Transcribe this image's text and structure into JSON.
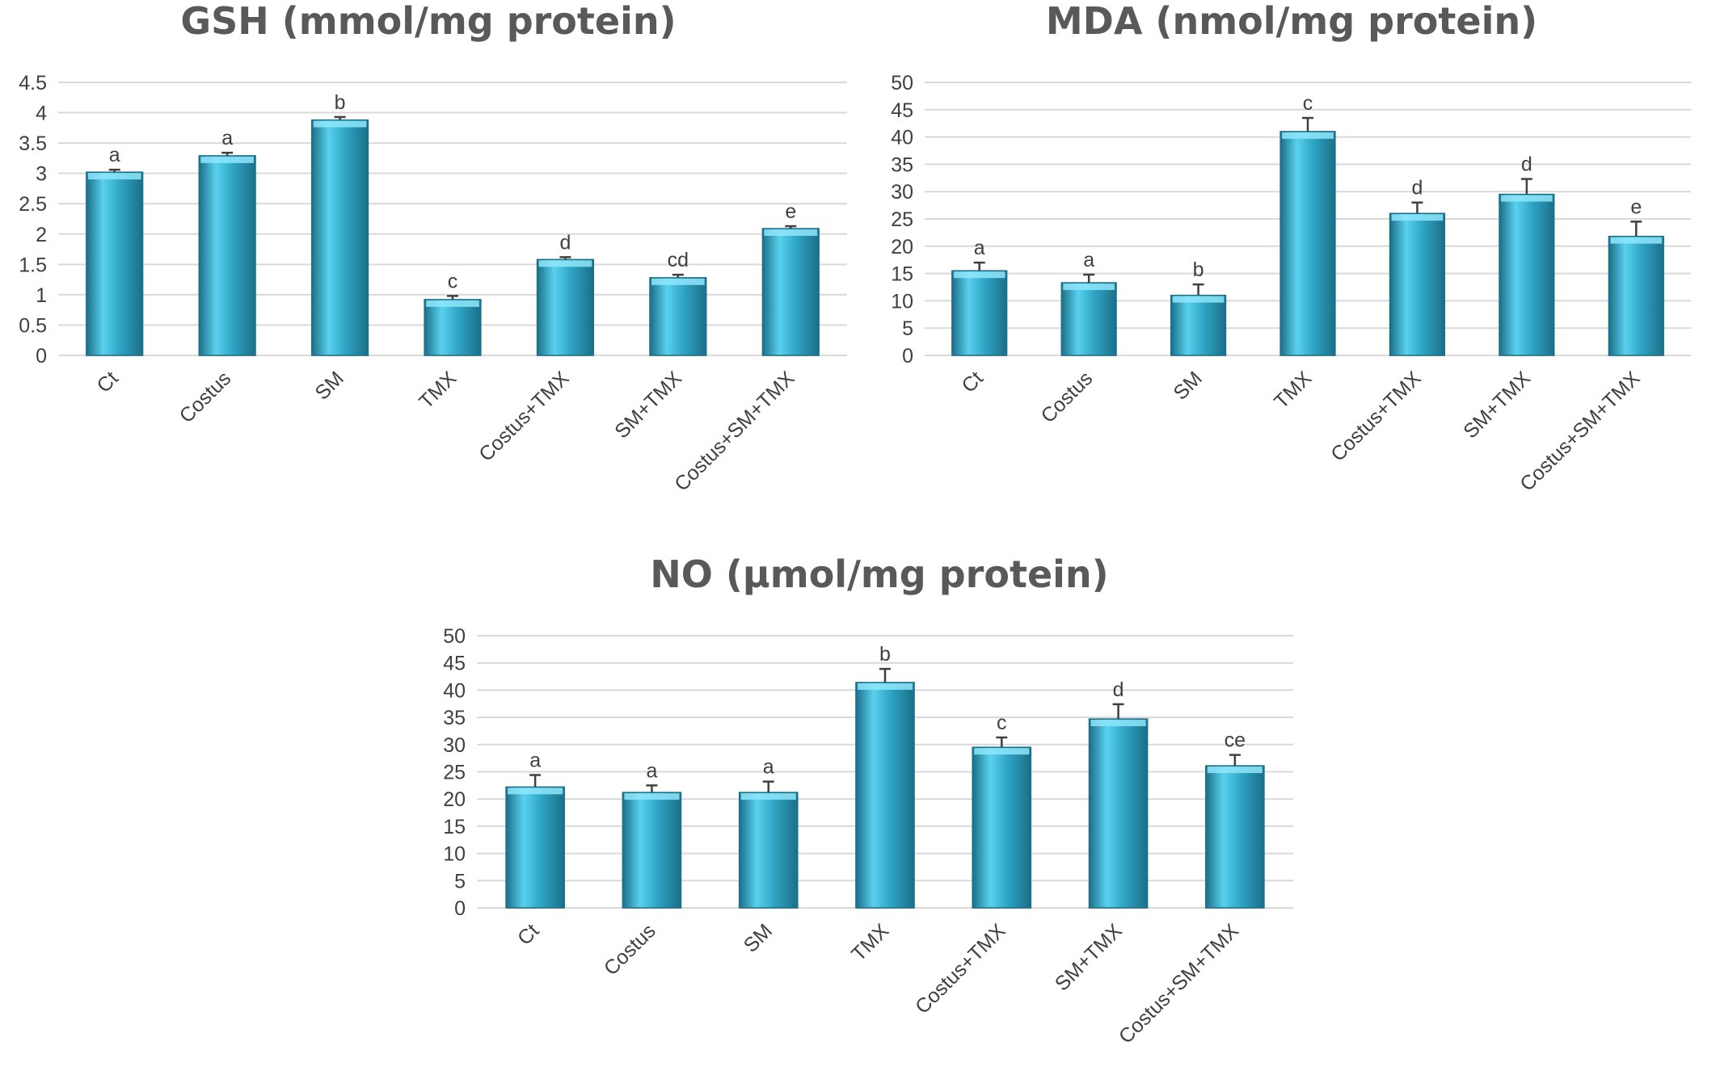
{
  "colors": {
    "bar_dark": "#1b6f88",
    "bar_mid": "#2fa4c4",
    "bar_light": "#58d1ee",
    "bar_top": "#8fe6fa",
    "text": "#404040",
    "title": "#595959",
    "grid": "#d9d9d9"
  },
  "chart_data": [
    {
      "id": "gsh",
      "type": "bar",
      "title": "GSH (mmol/mg protein)",
      "xlabel": "",
      "ylabel": "",
      "ylim": [
        0,
        4.5
      ],
      "yticks": [
        0,
        0.5,
        1,
        1.5,
        2,
        2.5,
        3,
        3.5,
        4,
        4.5
      ],
      "ytick_labels": [
        "0",
        "0.5",
        "1",
        "1.5",
        "2",
        "2.5",
        "3",
        "3.5",
        "4",
        "4.5"
      ],
      "grid": true,
      "legend": "none",
      "categories": [
        "Ct",
        "Costus",
        "SM",
        "TMX",
        "Costus+TMX",
        "SM+TMX",
        "Costus+SM+TMX"
      ],
      "values": [
        3.02,
        3.29,
        3.88,
        0.92,
        1.58,
        1.28,
        2.09
      ],
      "errors": [
        0.04,
        0.05,
        0.05,
        0.06,
        0.04,
        0.05,
        0.04
      ],
      "significance": [
        "a",
        "a",
        "b",
        "c",
        "d",
        "cd",
        "e"
      ]
    },
    {
      "id": "mda",
      "type": "bar",
      "title": "MDA (nmol/mg protein)",
      "xlabel": "",
      "ylabel": "",
      "ylim": [
        0,
        50
      ],
      "yticks": [
        0,
        5,
        10,
        15,
        20,
        25,
        30,
        35,
        40,
        45,
        50
      ],
      "ytick_labels": [
        "0",
        "5",
        "10",
        "15",
        "20",
        "25",
        "30",
        "35",
        "40",
        "45",
        "50"
      ],
      "grid": true,
      "legend": "none",
      "categories": [
        "Ct",
        "Costus",
        "SM",
        "TMX",
        "Costus+TMX",
        "SM+TMX",
        "Costus+SM+TMX"
      ],
      "values": [
        15.5,
        13.3,
        11.0,
        41.0,
        26.0,
        29.5,
        21.8
      ],
      "errors": [
        1.5,
        1.5,
        2.0,
        2.5,
        2.0,
        2.8,
        2.7
      ],
      "significance": [
        "a",
        "a",
        "b",
        "c",
        "d",
        "d",
        "e"
      ]
    },
    {
      "id": "no",
      "type": "bar",
      "title": "NO (µmol/mg protein)",
      "xlabel": "",
      "ylabel": "",
      "ylim": [
        0,
        50
      ],
      "yticks": [
        0,
        5,
        10,
        15,
        20,
        25,
        30,
        35,
        40,
        45,
        50
      ],
      "ytick_labels": [
        "0",
        "5",
        "10",
        "15",
        "20",
        "25",
        "30",
        "35",
        "40",
        "45",
        "50"
      ],
      "grid": true,
      "legend": "none",
      "categories": [
        "Ct",
        "Costus",
        "SM",
        "TMX",
        "Costus+TMX",
        "SM+TMX",
        "Costus+SM+TMX"
      ],
      "values": [
        22.2,
        21.2,
        21.2,
        41.4,
        29.5,
        34.7,
        26.1
      ],
      "errors": [
        2.2,
        1.3,
        2.0,
        2.5,
        1.8,
        2.7,
        2.0
      ],
      "significance": [
        "a",
        "a",
        "a",
        "b",
        "c",
        "d",
        "ce"
      ]
    }
  ]
}
